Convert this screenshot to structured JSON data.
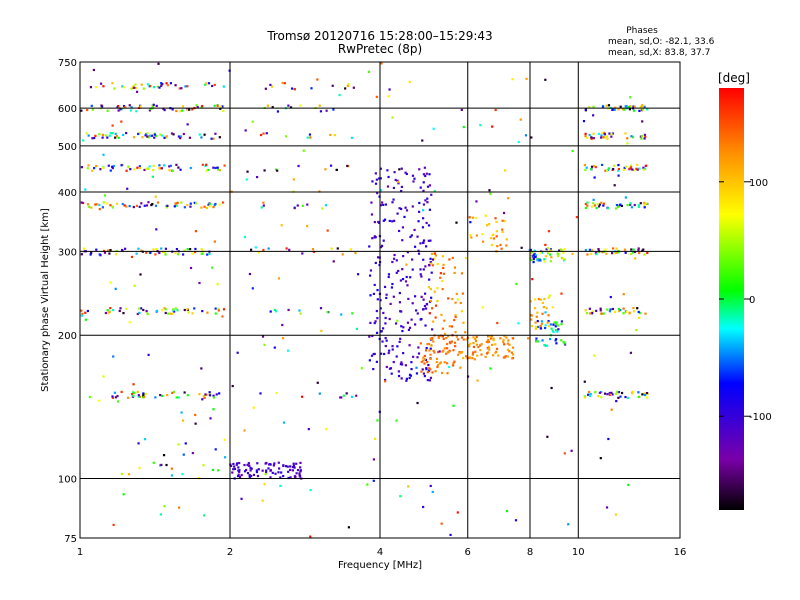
{
  "chart_data": {
    "type": "scatter",
    "title": "Tromsø 20120716 15:28:00–15:29:43",
    "subtitle": "RwPretec (8p)",
    "stats_title": "Phases",
    "stats_line1": "mean, sd,O: -82.1, 33.6",
    "stats_line2": "mean, sd,X: 83.8, 37.7",
    "xlabel": "Frequency [MHz]",
    "ylabel": "Stationary phase Virtual Height [km]",
    "x_scale": "log",
    "y_scale": "log",
    "xlim": [
      1,
      16
    ],
    "ylim": [
      75,
      750
    ],
    "x_ticks": [
      1,
      2,
      4,
      6,
      8,
      10,
      16
    ],
    "x_tick_labels": [
      "1",
      "2",
      "4",
      "6",
      "8",
      "10",
      "16"
    ],
    "y_ticks": [
      75,
      100,
      200,
      300,
      400,
      500,
      600,
      750
    ],
    "y_tick_labels": [
      "75",
      "100",
      "200",
      "300",
      "400",
      "500",
      "600",
      "750"
    ],
    "grid": true,
    "colorbar": {
      "label": "[deg]",
      "range": [
        -180,
        180
      ],
      "ticks": [
        100,
        0,
        -100
      ],
      "tick_labels": [
        "100",
        "0",
        "-100"
      ]
    },
    "clusters": [
      {
        "x": [
          1.05,
          1.95
        ],
        "y": 668,
        "phase": [
          -180,
          180
        ],
        "count": 40
      },
      {
        "x": [
          1.0,
          1.95
        ],
        "y": 600,
        "phase": [
          -180,
          180
        ],
        "count": 55
      },
      {
        "x": [
          1.0,
          1.95
        ],
        "y": 525,
        "phase": [
          -180,
          180
        ],
        "count": 55
      },
      {
        "x": [
          1.0,
          1.95
        ],
        "y": 450,
        "phase": [
          -180,
          180
        ],
        "count": 55
      },
      {
        "x": [
          1.0,
          1.95
        ],
        "y": 375,
        "phase": [
          -180,
          180
        ],
        "count": 55
      },
      {
        "x": [
          1.0,
          1.95
        ],
        "y": 300,
        "phase": [
          -180,
          180
        ],
        "count": 55
      },
      {
        "x": [
          1.0,
          1.95
        ],
        "y": 225,
        "phase": [
          -180,
          180
        ],
        "count": 50
      },
      {
        "x": [
          1.0,
          1.95
        ],
        "y": 150,
        "phase": [
          -180,
          180
        ],
        "count": 45
      },
      {
        "x": [
          2.3,
          3.6
        ],
        "y": 668,
        "phase": [
          -180,
          180
        ],
        "count": 10
      },
      {
        "x": [
          2.3,
          3.6
        ],
        "y": 600,
        "phase": [
          -180,
          180
        ],
        "count": 12
      },
      {
        "x": [
          2.3,
          3.6
        ],
        "y": 525,
        "phase": [
          -180,
          180
        ],
        "count": 10
      },
      {
        "x": [
          2.3,
          3.6
        ],
        "y": 450,
        "phase": [
          -180,
          180
        ],
        "count": 10
      },
      {
        "x": [
          2.3,
          3.6
        ],
        "y": 375,
        "phase": [
          -180,
          180
        ],
        "count": 10
      },
      {
        "x": [
          2.3,
          3.6
        ],
        "y": 300,
        "phase": [
          -180,
          180
        ],
        "count": 10
      },
      {
        "x": [
          2.3,
          3.6
        ],
        "y": 225,
        "phase": [
          -180,
          180
        ],
        "count": 10
      },
      {
        "x": [
          2.3,
          3.6
        ],
        "y": 150,
        "phase": [
          -180,
          180
        ],
        "count": 10
      },
      {
        "x": [
          10.3,
          13.8
        ],
        "y": 600,
        "phase": [
          -180,
          180
        ],
        "count": 40
      },
      {
        "x": [
          10.3,
          13.8
        ],
        "y": 525,
        "phase": [
          -180,
          180
        ],
        "count": 35
      },
      {
        "x": [
          10.3,
          13.8
        ],
        "y": 450,
        "phase": [
          -180,
          180
        ],
        "count": 40
      },
      {
        "x": [
          10.3,
          13.8
        ],
        "y": 375,
        "phase": [
          -180,
          180
        ],
        "count": 35
      },
      {
        "x": [
          10.3,
          13.8
        ],
        "y": 300,
        "phase": [
          -180,
          180
        ],
        "count": 40
      },
      {
        "x": [
          10.3,
          13.8
        ],
        "y": 225,
        "phase": [
          -180,
          180
        ],
        "count": 35
      },
      {
        "x": [
          10.3,
          13.8
        ],
        "y": 150,
        "phase": [
          -180,
          180
        ],
        "count": 40
      },
      {
        "x": [
          2.0,
          2.8
        ],
        "y": [
          100,
          108
        ],
        "phase": [
          -125,
          -95
        ],
        "count": 90
      },
      {
        "x": [
          3.8,
          5.1
        ],
        "y": [
          160,
          450
        ],
        "phase": [
          -130,
          -80
        ],
        "count": 260
      },
      {
        "x": [
          4.8,
          5.8
        ],
        "y": [
          165,
          200
        ],
        "phase": [
          120,
          150
        ],
        "count": 70
      },
      {
        "x": [
          5.8,
          7.4
        ],
        "y": [
          178,
          200
        ],
        "phase": [
          100,
          150
        ],
        "count": 80
      },
      {
        "x": [
          5.0,
          6.0
        ],
        "y": [
          200,
          300
        ],
        "phase": [
          80,
          170
        ],
        "count": 50
      },
      {
        "x": [
          8.0,
          9.4
        ],
        "y": [
          285,
          305
        ],
        "phase": [
          -110,
          120
        ],
        "count": 50
      },
      {
        "x": [
          8.2,
          9.5
        ],
        "y": [
          190,
          215
        ],
        "phase": [
          -110,
          30
        ],
        "count": 40
      },
      {
        "x": [
          8.0,
          9.0
        ],
        "y": [
          205,
          240
        ],
        "phase": [
          80,
          140
        ],
        "count": 25
      },
      {
        "x": [
          6.0,
          7.2
        ],
        "y": [
          300,
          360
        ],
        "phase": [
          80,
          150
        ],
        "count": 30
      },
      {
        "x": [
          1.3,
          2.0
        ],
        "y": [
          100,
          140
        ],
        "phase": [
          -180,
          180
        ],
        "count": 25
      },
      {
        "x": [
          1.0,
          14.0
        ],
        "y": [
          75,
          750
        ],
        "phase": [
          -180,
          180
        ],
        "count": 240
      }
    ]
  }
}
